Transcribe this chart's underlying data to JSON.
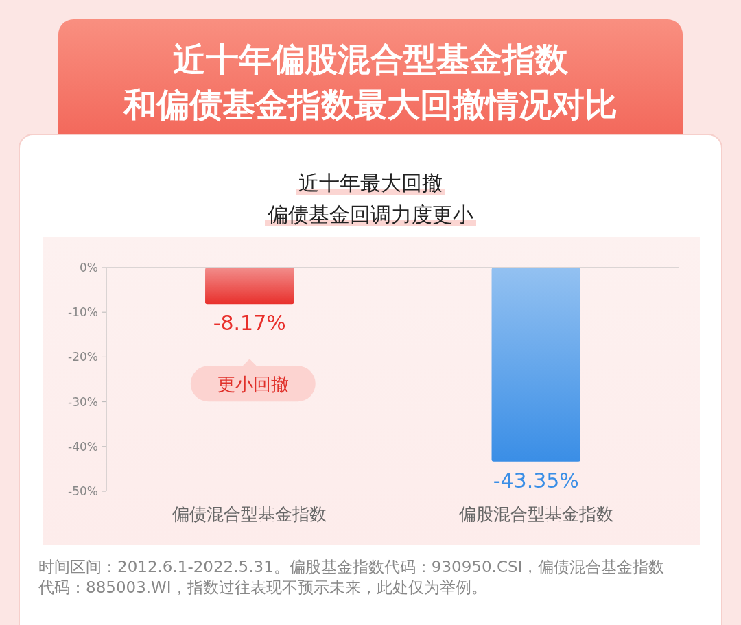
{
  "chart_data": {
    "type": "bar",
    "title": "近十年偏股混合型基金指数和偏债基金指数最大回撤情况对比",
    "subtitle": "近十年最大回撤偏债基金回调力度更小",
    "categories": [
      "偏债混合型基金指数",
      "偏股混合型基金指数"
    ],
    "values": [
      -8.17,
      -43.35
    ],
    "colors": [
      "#e8302c",
      "#3a8ee6"
    ],
    "value_labels": [
      "-8.17%",
      "-43.35%"
    ],
    "ylim": [
      -50,
      0
    ],
    "yticks": [
      {
        "value": 0,
        "label": "0%"
      },
      {
        "value": -10,
        "label": "-10%"
      },
      {
        "value": -20,
        "label": "-20%"
      },
      {
        "value": -30,
        "label": "-30%"
      },
      {
        "value": -40,
        "label": "-40%"
      },
      {
        "value": -50,
        "label": "-50%"
      }
    ],
    "annotations": [
      "更小回撤",
      "时间区间：2012.6.1-2022.5.31。偏股基金指数代码：930950.CSI，偏债混合基金指数代码：885003.WI，指数过往表现不预示未来，此处仅为举例。"
    ]
  }
}
